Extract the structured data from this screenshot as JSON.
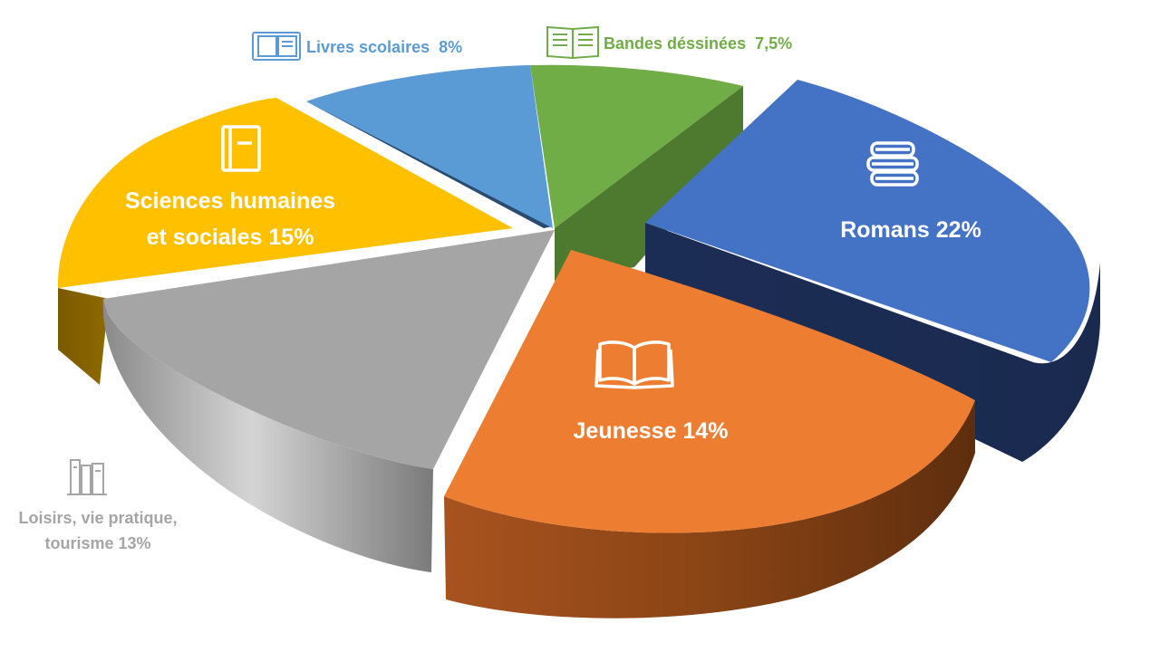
{
  "chart_data": {
    "type": "pie",
    "style": "3d-exploded",
    "title": "",
    "legend": "none",
    "slices": [
      {
        "label": "Romans 22%",
        "value": 22,
        "color": "#4472C4",
        "icon": "books-stack-icon"
      },
      {
        "label": "Jeunesse 14%",
        "value": 14,
        "color": "#ED7D31",
        "icon": "open-book-icon"
      },
      {
        "label_lines": [
          "Loisirs, vie pratique,",
          "tourisme 13%"
        ],
        "value": 13,
        "color": "#A5A5A5",
        "icon": "bookshelf-icon"
      },
      {
        "label_lines": [
          "Sciences humaines",
          "et sociales 15%"
        ],
        "value": 15,
        "color": "#FFC000",
        "icon": "notebook-icon"
      },
      {
        "label": "Livres scolaires  8%",
        "value": 8,
        "color": "#5B9BD5",
        "icon": "textbook-icon"
      },
      {
        "label": "Bandes déssinées  7,5%",
        "value": 7.5,
        "color": "#70AD47",
        "icon": "comic-book-icon"
      }
    ]
  }
}
